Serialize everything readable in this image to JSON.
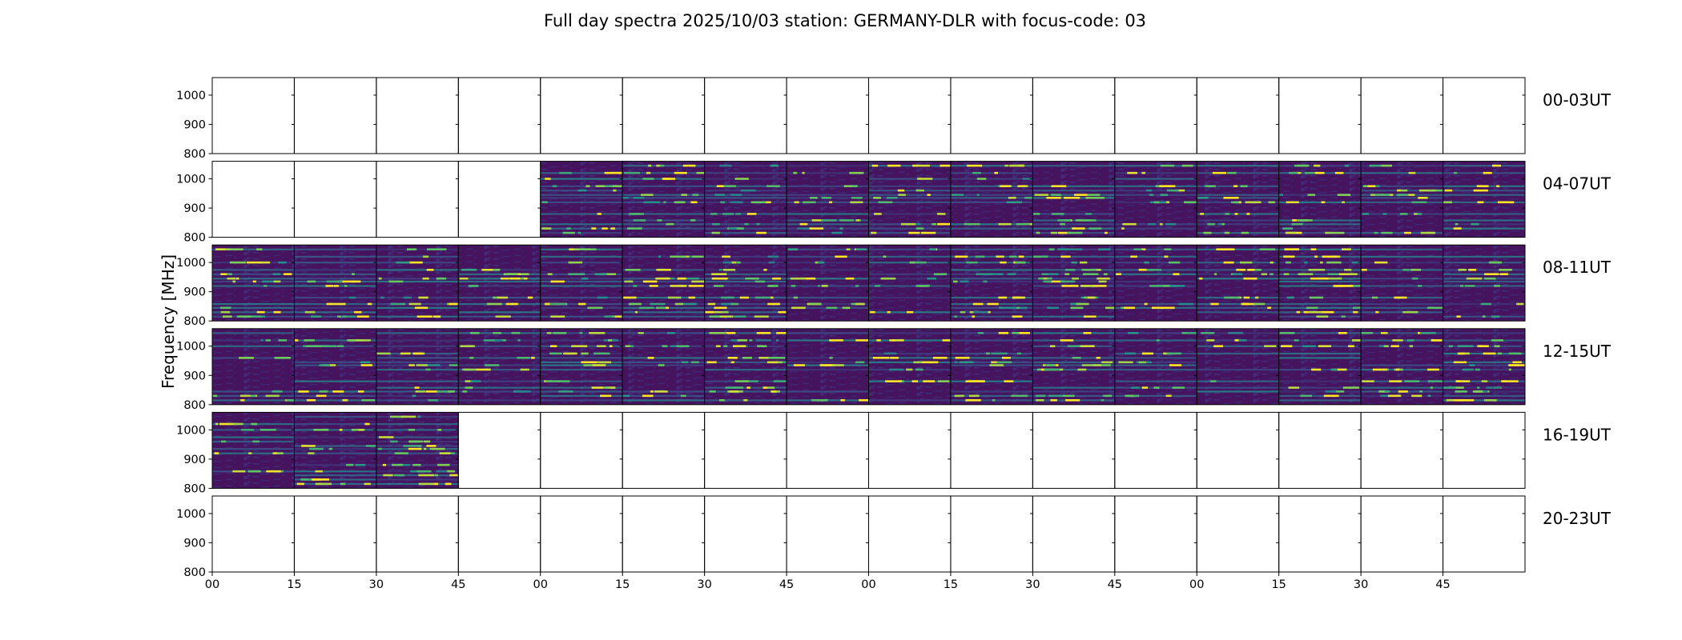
{
  "chart_data": {
    "type": "heatmap",
    "title": "Full day spectra 2025/10/03 station: GERMANY-DLR with focus-code: 03",
    "ylabel": "Frequency [MHz]",
    "xlabel": "",
    "ylim": [
      800,
      1060
    ],
    "y_ticks": [
      1000,
      900,
      800
    ],
    "x_tick_labels": [
      "00",
      "15",
      "30",
      "45",
      "00",
      "15",
      "30",
      "45",
      "00",
      "15",
      "30",
      "45",
      "00",
      "15",
      "30",
      "45"
    ],
    "colormap": "viridis",
    "colormap_stops": [
      "#440154",
      "#3b528b",
      "#21918c",
      "#5ec962",
      "#fde725"
    ],
    "rows": [
      {
        "label": "00-03UT",
        "has_data": [
          false,
          false,
          false,
          false,
          false,
          false,
          false,
          false,
          false,
          false,
          false,
          false,
          false,
          false,
          false,
          false
        ]
      },
      {
        "label": "04-07UT",
        "has_data": [
          false,
          false,
          false,
          false,
          true,
          true,
          true,
          true,
          true,
          true,
          true,
          true,
          true,
          true,
          true,
          true
        ]
      },
      {
        "label": "08-11UT",
        "has_data": [
          true,
          true,
          true,
          true,
          true,
          true,
          true,
          true,
          true,
          true,
          true,
          true,
          true,
          true,
          true,
          true
        ]
      },
      {
        "label": "12-15UT",
        "has_data": [
          true,
          true,
          true,
          true,
          true,
          true,
          true,
          true,
          true,
          true,
          true,
          true,
          true,
          true,
          true,
          true
        ]
      },
      {
        "label": "16-19UT",
        "has_data": [
          true,
          true,
          true,
          false,
          false,
          false,
          false,
          false,
          false,
          false,
          false,
          false,
          false,
          false,
          false,
          false
        ]
      },
      {
        "label": "20-23UT",
        "has_data": [
          false,
          false,
          false,
          false,
          false,
          false,
          false,
          false,
          false,
          false,
          false,
          false,
          false,
          false,
          false,
          false
        ]
      }
    ],
    "emission_bands_mhz": [
      1045,
      1020,
      1000,
      975,
      960,
      945,
      935,
      920,
      880,
      858,
      845,
      830,
      815
    ]
  }
}
